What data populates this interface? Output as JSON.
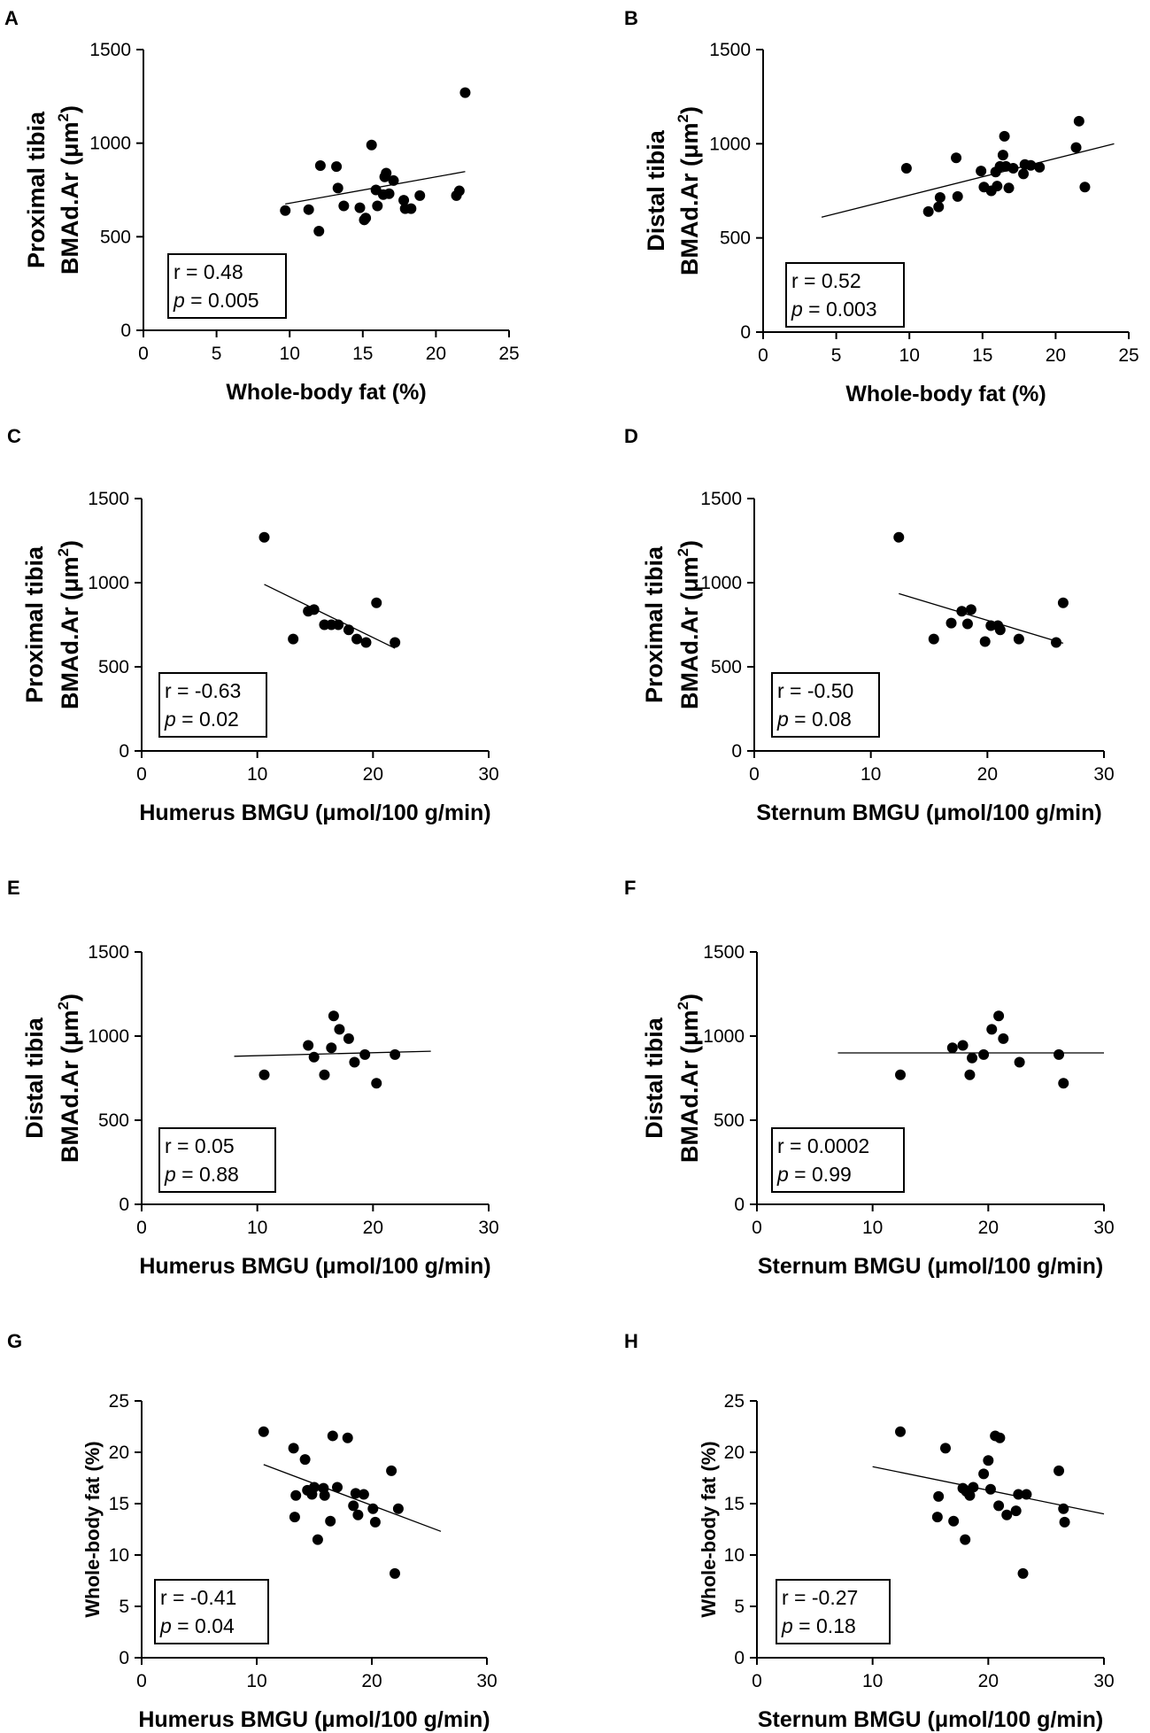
{
  "figure": {
    "panels": [
      "A",
      "B",
      "C",
      "D",
      "E",
      "F",
      "G",
      "H"
    ]
  },
  "chart_data": [
    {
      "panel": "A",
      "type": "scatter",
      "xlabel": "Whole-body fat (%)",
      "ylabel": [
        "Proximal tibia",
        "BMAd.Ar (μm",
        "2",
        ")"
      ],
      "xlim": [
        0,
        25
      ],
      "ylim": [
        0,
        1500
      ],
      "xticks": [
        "0",
        "5",
        "10",
        "15",
        "20",
        "25"
      ],
      "yticks": [
        "0",
        "500",
        "1000",
        "1500"
      ],
      "points": [
        [
          9.7,
          640
        ],
        [
          11.3,
          645
        ],
        [
          12.0,
          530
        ],
        [
          12.1,
          880
        ],
        [
          13.2,
          875
        ],
        [
          13.3,
          760
        ],
        [
          13.7,
          665
        ],
        [
          14.8,
          655
        ],
        [
          15.1,
          590
        ],
        [
          15.2,
          600
        ],
        [
          15.6,
          990
        ],
        [
          15.9,
          750
        ],
        [
          16.0,
          665
        ],
        [
          16.4,
          725
        ],
        [
          16.5,
          820
        ],
        [
          16.6,
          840
        ],
        [
          16.8,
          730
        ],
        [
          17.1,
          800
        ],
        [
          17.8,
          695
        ],
        [
          17.9,
          650
        ],
        [
          18.3,
          650
        ],
        [
          18.9,
          720
        ],
        [
          21.4,
          720
        ],
        [
          21.6,
          745
        ],
        [
          22.0,
          1270
        ]
      ],
      "fit": [
        [
          9.7,
          675
        ],
        [
          22.0,
          848
        ]
      ],
      "stats": {
        "r": "r = 0.48",
        "p_label": "p",
        "p_value": " = 0.005"
      }
    },
    {
      "panel": "B",
      "type": "scatter",
      "xlabel": "Whole-body fat (%)",
      "ylabel": [
        "Distal tibia",
        "BMAd.Ar (μm",
        "2",
        ")"
      ],
      "xlim": [
        0,
        25
      ],
      "ylim": [
        0,
        1500
      ],
      "xticks": [
        "0",
        "5",
        "10",
        "15",
        "20",
        "25"
      ],
      "yticks": [
        "0",
        "500",
        "1000",
        "1500"
      ],
      "points": [
        [
          9.8,
          870
        ],
        [
          11.3,
          640
        ],
        [
          12.0,
          665
        ],
        [
          12.1,
          715
        ],
        [
          13.2,
          925
        ],
        [
          13.3,
          720
        ],
        [
          14.9,
          855
        ],
        [
          15.1,
          770
        ],
        [
          15.6,
          750
        ],
        [
          15.9,
          850
        ],
        [
          16.0,
          775
        ],
        [
          16.2,
          880
        ],
        [
          16.4,
          940
        ],
        [
          16.5,
          1040
        ],
        [
          16.6,
          880
        ],
        [
          16.8,
          765
        ],
        [
          17.1,
          870
        ],
        [
          17.8,
          840
        ],
        [
          17.9,
          890
        ],
        [
          18.3,
          885
        ],
        [
          18.9,
          875
        ],
        [
          21.4,
          980
        ],
        [
          21.6,
          1120
        ],
        [
          22.0,
          770
        ]
      ],
      "fit": [
        [
          4.0,
          610
        ],
        [
          24.0,
          1000
        ]
      ],
      "stats": {
        "r": "r = 0.52",
        "p_label": "p",
        "p_value": " = 0.003"
      }
    },
    {
      "panel": "C",
      "type": "scatter",
      "xlabel": "Humerus BMGU (μmol/100 g/min)",
      "ylabel": [
        "Proximal tibia",
        "BMAd.Ar (μm",
        "2",
        ")"
      ],
      "xlim": [
        0,
        30
      ],
      "ylim": [
        0,
        1500
      ],
      "xticks": [
        "0",
        "10",
        "20",
        "30"
      ],
      "yticks": [
        "0",
        "500",
        "1000",
        "1500"
      ],
      "points": [
        [
          10.6,
          1270
        ],
        [
          13.1,
          665
        ],
        [
          14.4,
          830
        ],
        [
          14.9,
          840
        ],
        [
          15.8,
          750
        ],
        [
          16.4,
          750
        ],
        [
          17.0,
          750
        ],
        [
          17.9,
          720
        ],
        [
          18.6,
          665
        ],
        [
          19.4,
          645
        ],
        [
          20.3,
          880
        ],
        [
          21.9,
          645
        ]
      ],
      "fit": [
        [
          10.6,
          990
        ],
        [
          21.9,
          610
        ]
      ],
      "stats": {
        "r": "r = -0.63",
        "p_label": "p",
        "p_value": " = 0.02"
      }
    },
    {
      "panel": "D",
      "type": "scatter",
      "xlabel": "Sternum BMGU (μmol/100 g/min)",
      "ylabel": [
        "Proximal tibia",
        "BMAd.Ar (μm",
        "2",
        ")"
      ],
      "xlim": [
        0,
        30
      ],
      "ylim": [
        0,
        1500
      ],
      "xticks": [
        "0",
        "10",
        "20",
        "30"
      ],
      "yticks": [
        "0",
        "500",
        "1000",
        "1500"
      ],
      "points": [
        [
          12.4,
          1270
        ],
        [
          15.4,
          665
        ],
        [
          16.9,
          760
        ],
        [
          17.8,
          830
        ],
        [
          18.3,
          755
        ],
        [
          18.6,
          840
        ],
        [
          19.8,
          650
        ],
        [
          20.3,
          745
        ],
        [
          20.9,
          745
        ],
        [
          21.1,
          720
        ],
        [
          22.7,
          665
        ],
        [
          25.9,
          645
        ],
        [
          26.5,
          880
        ]
      ],
      "fit": [
        [
          12.4,
          935
        ],
        [
          26.5,
          640
        ]
      ],
      "stats": {
        "r": "r = -0.50",
        "p_label": "p",
        "p_value": " = 0.08"
      }
    },
    {
      "panel": "E",
      "type": "scatter",
      "xlabel": "Humerus BMGU (μmol/100 g/min)",
      "ylabel": [
        "Distal tibia",
        "BMAd.Ar (μm",
        "2",
        ")"
      ],
      "xlim": [
        0,
        30
      ],
      "ylim": [
        0,
        1500
      ],
      "xticks": [
        "0",
        "10",
        "20",
        "30"
      ],
      "yticks": [
        "0",
        "500",
        "1000",
        "1500"
      ],
      "points": [
        [
          10.6,
          770
        ],
        [
          14.4,
          945
        ],
        [
          14.9,
          875
        ],
        [
          15.8,
          770
        ],
        [
          16.4,
          930
        ],
        [
          16.6,
          1120
        ],
        [
          17.1,
          1040
        ],
        [
          17.9,
          985
        ],
        [
          18.4,
          845
        ],
        [
          19.3,
          890
        ],
        [
          20.3,
          720
        ],
        [
          21.9,
          890
        ]
      ],
      "fit": [
        [
          8.0,
          880
        ],
        [
          25.0,
          910
        ]
      ],
      "stats": {
        "r": "r = 0.05",
        "p_label": "p",
        "p_value": " = 0.88"
      }
    },
    {
      "panel": "F",
      "type": "scatter",
      "xlabel": "Sternum BMGU (μmol/100 g/min)",
      "ylabel": [
        "Distal tibia",
        "BMAd.Ar (μm",
        "2",
        ")"
      ],
      "xlim": [
        0,
        30
      ],
      "ylim": [
        0,
        1500
      ],
      "xticks": [
        "0",
        "10",
        "20",
        "30"
      ],
      "yticks": [
        "0",
        "500",
        "1000",
        "1500"
      ],
      "points": [
        [
          12.4,
          770
        ],
        [
          16.9,
          930
        ],
        [
          17.8,
          945
        ],
        [
          18.4,
          770
        ],
        [
          18.6,
          870
        ],
        [
          19.6,
          890
        ],
        [
          20.3,
          1040
        ],
        [
          20.9,
          1120
        ],
        [
          21.3,
          985
        ],
        [
          22.7,
          845
        ],
        [
          26.1,
          890
        ],
        [
          26.5,
          720
        ]
      ],
      "fit": [
        [
          7.0,
          900
        ],
        [
          30.0,
          900
        ]
      ],
      "stats": {
        "r": "r = 0.0002",
        "p_label": "p",
        "p_value": " = 0.99"
      }
    },
    {
      "panel": "G",
      "type": "scatter",
      "xlabel": "Humerus BMGU (μmol/100 g/min)",
      "ylabel": [
        "Whole-body fat (%)"
      ],
      "xlim": [
        0,
        30
      ],
      "ylim": [
        0,
        25
      ],
      "xticks": [
        "0",
        "10",
        "20",
        "30"
      ],
      "yticks": [
        "0",
        "5",
        "10",
        "15",
        "20",
        "25"
      ],
      "points": [
        [
          10.6,
          22.0
        ],
        [
          13.2,
          20.4
        ],
        [
          13.3,
          13.7
        ],
        [
          13.4,
          15.8
        ],
        [
          14.2,
          19.3
        ],
        [
          14.4,
          16.3
        ],
        [
          14.8,
          15.9
        ],
        [
          15.0,
          16.6
        ],
        [
          15.3,
          11.5
        ],
        [
          15.8,
          16.5
        ],
        [
          15.9,
          15.8
        ],
        [
          16.4,
          13.3
        ],
        [
          16.6,
          21.6
        ],
        [
          17.0,
          16.6
        ],
        [
          17.9,
          21.4
        ],
        [
          18.4,
          14.8
        ],
        [
          18.6,
          16.0
        ],
        [
          18.8,
          13.9
        ],
        [
          19.3,
          15.9
        ],
        [
          20.1,
          14.5
        ],
        [
          20.3,
          13.2
        ],
        [
          21.7,
          18.2
        ],
        [
          22.0,
          8.2
        ],
        [
          22.3,
          14.5
        ]
      ],
      "fit": [
        [
          10.6,
          18.8
        ],
        [
          26.0,
          12.3
        ]
      ],
      "stats": {
        "r": "r = -0.41",
        "p_label": "p",
        "p_value": " = 0.04"
      }
    },
    {
      "panel": "H",
      "type": "scatter",
      "xlabel": "Sternum BMGU (μmol/100 g/min)",
      "ylabel": [
        "Whole-body fat (%)"
      ],
      "xlim": [
        0,
        30
      ],
      "ylim": [
        0,
        25
      ],
      "xticks": [
        "0",
        "10",
        "20",
        "30"
      ],
      "yticks": [
        "0",
        "5",
        "10",
        "15",
        "20",
        "25"
      ],
      "points": [
        [
          12.4,
          22.0
        ],
        [
          15.6,
          13.7
        ],
        [
          15.7,
          15.7
        ],
        [
          16.3,
          20.4
        ],
        [
          17.0,
          13.3
        ],
        [
          17.8,
          16.5
        ],
        [
          18.0,
          11.5
        ],
        [
          18.1,
          16.2
        ],
        [
          18.4,
          15.8
        ],
        [
          18.7,
          16.6
        ],
        [
          19.6,
          17.9
        ],
        [
          20.0,
          19.2
        ],
        [
          20.2,
          16.4
        ],
        [
          20.6,
          21.6
        ],
        [
          20.9,
          14.8
        ],
        [
          21.0,
          21.4
        ],
        [
          21.6,
          13.9
        ],
        [
          22.4,
          14.3
        ],
        [
          22.6,
          15.9
        ],
        [
          23.0,
          8.2
        ],
        [
          23.3,
          15.9
        ],
        [
          26.1,
          18.2
        ],
        [
          26.5,
          14.5
        ],
        [
          26.6,
          13.2
        ]
      ],
      "fit": [
        [
          10.0,
          18.6
        ],
        [
          30.0,
          14.0
        ]
      ],
      "stats": {
        "r": "r = -0.27",
        "p_label": "p",
        "p_value": " = 0.18"
      }
    }
  ]
}
